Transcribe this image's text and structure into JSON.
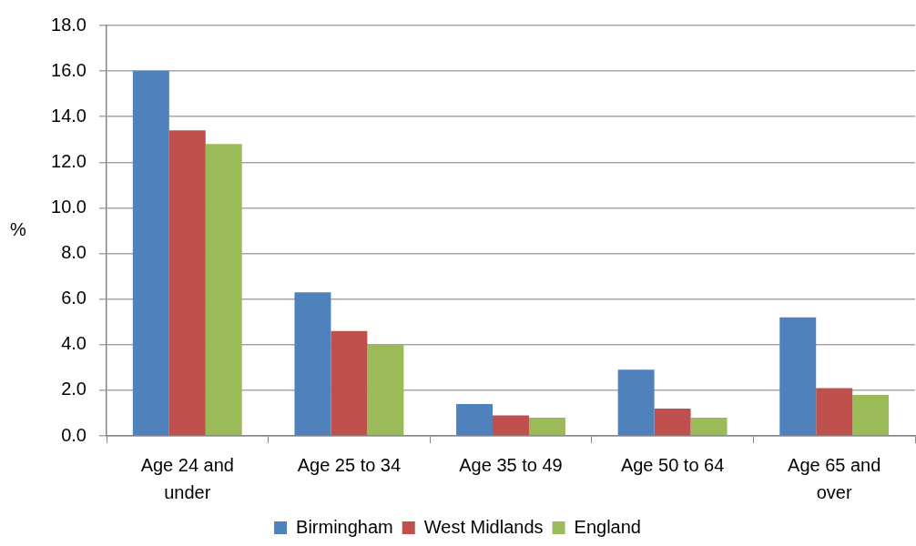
{
  "chart_data": {
    "type": "bar",
    "categories": [
      "Age 24 and under",
      "Age 25 to 34",
      "Age 35 to 49",
      "Age 50 to 64",
      "Age 65 and over"
    ],
    "series": [
      {
        "name": "Birmingham",
        "color": "#4f81bd",
        "values": [
          16.0,
          6.3,
          1.4,
          2.9,
          5.2
        ]
      },
      {
        "name": "West Midlands",
        "color": "#c0504d",
        "values": [
          13.4,
          4.6,
          0.9,
          1.2,
          2.1
        ]
      },
      {
        "name": "England",
        "color": "#9bbb59",
        "values": [
          12.8,
          4.0,
          0.8,
          0.8,
          1.8
        ]
      }
    ],
    "ylabel": "%",
    "ylim": [
      0,
      18
    ],
    "yticks": [
      {
        "value": 0,
        "label": "0.0"
      },
      {
        "value": 2,
        "label": "2.0"
      },
      {
        "value": 4,
        "label": "4.0"
      },
      {
        "value": 6,
        "label": "6.0"
      },
      {
        "value": 8,
        "label": "8.0"
      },
      {
        "value": 10,
        "label": "10.0"
      },
      {
        "value": 12,
        "label": "12.0"
      },
      {
        "value": 14,
        "label": "14.0"
      },
      {
        "value": 16,
        "label": "16.0"
      },
      {
        "value": 18,
        "label": "18.0"
      }
    ],
    "grid": "y",
    "legend": "bottom"
  }
}
